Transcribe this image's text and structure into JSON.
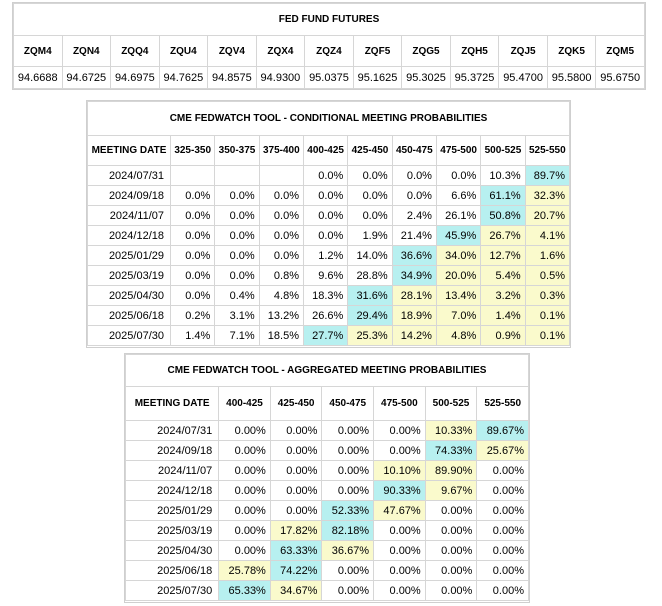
{
  "futures": {
    "title": "FED FUND FUTURES",
    "contracts": [
      "ZQM4",
      "ZQN4",
      "ZQQ4",
      "ZQU4",
      "ZQV4",
      "ZQX4",
      "ZQZ4",
      "ZQF5",
      "ZQG5",
      "ZQH5",
      "ZQJ5",
      "ZQK5",
      "ZQM5"
    ],
    "prices": [
      "94.6688",
      "94.6725",
      "94.6975",
      "94.7625",
      "94.8575",
      "94.9300",
      "95.0375",
      "95.1625",
      "95.3025",
      "95.3725",
      "95.4700",
      "95.5800",
      "95.6750"
    ]
  },
  "conditional": {
    "title": "CME FEDWATCH TOOL - CONDITIONAL MEETING PROBABILITIES",
    "date_header": "MEETING DATE",
    "ranges": [
      "325-350",
      "350-375",
      "375-400",
      "400-425",
      "425-450",
      "450-475",
      "475-500",
      "500-525",
      "525-550"
    ],
    "rows": [
      {
        "date": "2024/07/31",
        "values": [
          "",
          "",
          "",
          "0.0%",
          "0.0%",
          "0.0%",
          "0.0%",
          "10.3%",
          "89.7%"
        ],
        "hi": [
          8
        ],
        "mid": []
      },
      {
        "date": "2024/09/18",
        "values": [
          "0.0%",
          "0.0%",
          "0.0%",
          "0.0%",
          "0.0%",
          "0.0%",
          "6.6%",
          "61.1%",
          "32.3%"
        ],
        "hi": [
          7
        ],
        "mid": [
          8
        ]
      },
      {
        "date": "2024/11/07",
        "values": [
          "0.0%",
          "0.0%",
          "0.0%",
          "0.0%",
          "0.0%",
          "2.4%",
          "26.1%",
          "50.8%",
          "20.7%"
        ],
        "hi": [
          7
        ],
        "mid": [
          8
        ]
      },
      {
        "date": "2024/12/18",
        "values": [
          "0.0%",
          "0.0%",
          "0.0%",
          "0.0%",
          "1.9%",
          "21.4%",
          "45.9%",
          "26.7%",
          "4.1%"
        ],
        "hi": [
          6
        ],
        "mid": [
          7,
          8
        ]
      },
      {
        "date": "2025/01/29",
        "values": [
          "0.0%",
          "0.0%",
          "0.0%",
          "1.2%",
          "14.0%",
          "36.6%",
          "34.0%",
          "12.7%",
          "1.6%"
        ],
        "hi": [
          5
        ],
        "mid": [
          6,
          7,
          8
        ]
      },
      {
        "date": "2025/03/19",
        "values": [
          "0.0%",
          "0.0%",
          "0.8%",
          "9.6%",
          "28.8%",
          "34.9%",
          "20.0%",
          "5.4%",
          "0.5%"
        ],
        "hi": [
          5
        ],
        "mid": [
          6,
          7,
          8
        ]
      },
      {
        "date": "2025/04/30",
        "values": [
          "0.0%",
          "0.4%",
          "4.8%",
          "18.3%",
          "31.6%",
          "28.1%",
          "13.4%",
          "3.2%",
          "0.3%"
        ],
        "hi": [
          4
        ],
        "mid": [
          5,
          6,
          7,
          8
        ]
      },
      {
        "date": "2025/06/18",
        "values": [
          "0.2%",
          "3.1%",
          "13.2%",
          "26.6%",
          "29.4%",
          "18.9%",
          "7.0%",
          "1.4%",
          "0.1%"
        ],
        "hi": [
          4
        ],
        "mid": [
          5,
          6,
          7,
          8
        ]
      },
      {
        "date": "2025/07/30",
        "values": [
          "1.4%",
          "7.1%",
          "18.5%",
          "27.7%",
          "25.3%",
          "14.2%",
          "4.8%",
          "0.9%",
          "0.1%"
        ],
        "hi": [
          3
        ],
        "mid": [
          4,
          5,
          6,
          7,
          8
        ]
      }
    ]
  },
  "aggregated": {
    "title": "CME FEDWATCH TOOL - AGGREGATED MEETING PROBABILITIES",
    "date_header": "MEETING DATE",
    "ranges": [
      "400-425",
      "425-450",
      "450-475",
      "475-500",
      "500-525",
      "525-550"
    ],
    "rows": [
      {
        "date": "2024/07/31",
        "values": [
          "0.00%",
          "0.00%",
          "0.00%",
          "0.00%",
          "10.33%",
          "89.67%"
        ],
        "hi": [
          5
        ],
        "mid": [
          4
        ]
      },
      {
        "date": "2024/09/18",
        "values": [
          "0.00%",
          "0.00%",
          "0.00%",
          "0.00%",
          "74.33%",
          "25.67%"
        ],
        "hi": [
          4
        ],
        "mid": [
          5
        ]
      },
      {
        "date": "2024/11/07",
        "values": [
          "0.00%",
          "0.00%",
          "0.00%",
          "10.10%",
          "89.90%",
          "0.00%"
        ],
        "hi": [],
        "mid": [
          3,
          4
        ]
      },
      {
        "date": "2024/12/18",
        "values": [
          "0.00%",
          "0.00%",
          "0.00%",
          "90.33%",
          "9.67%",
          "0.00%"
        ],
        "hi": [
          3
        ],
        "mid": [
          4
        ]
      },
      {
        "date": "2025/01/29",
        "values": [
          "0.00%",
          "0.00%",
          "52.33%",
          "47.67%",
          "0.00%",
          "0.00%"
        ],
        "hi": [
          2
        ],
        "mid": [
          3
        ]
      },
      {
        "date": "2025/03/19",
        "values": [
          "0.00%",
          "17.82%",
          "82.18%",
          "0.00%",
          "0.00%",
          "0.00%"
        ],
        "hi": [
          2
        ],
        "mid": [
          1
        ]
      },
      {
        "date": "2025/04/30",
        "values": [
          "0.00%",
          "63.33%",
          "36.67%",
          "0.00%",
          "0.00%",
          "0.00%"
        ],
        "hi": [
          1
        ],
        "mid": [
          2
        ]
      },
      {
        "date": "2025/06/18",
        "values": [
          "25.78%",
          "74.22%",
          "0.00%",
          "0.00%",
          "0.00%",
          "0.00%"
        ],
        "hi": [
          1
        ],
        "mid": [
          0
        ]
      },
      {
        "date": "2025/07/30",
        "values": [
          "65.33%",
          "34.67%",
          "0.00%",
          "0.00%",
          "0.00%",
          "0.00%"
        ],
        "hi": [
          0
        ],
        "mid": [
          1
        ]
      }
    ]
  },
  "colors": {
    "highest": "#b7f0f0",
    "secondary": "#fafacc",
    "border": "#d6d6d6"
  }
}
